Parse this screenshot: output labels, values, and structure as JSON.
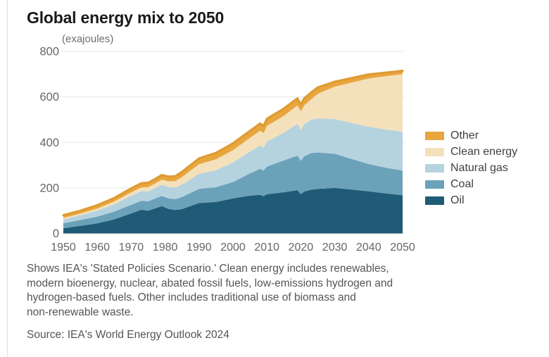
{
  "page": {
    "title": "Global energy mix to 2050",
    "units_label": "(exajoules)",
    "caption_lines": [
      "Shows IEA's 'Stated Policies Scenario.' Clean energy includes renewables,",
      "modern bioenergy, nuclear, abated fossil fuels, low-emissions hydrogen and",
      "hydrogen-based fuels. Other includes traditional use of biomass and",
      "non-renewable waste."
    ],
    "source": "Source: IEA's World Energy Outlook 2024"
  },
  "chart_data": {
    "type": "area",
    "stacked": true,
    "title": "Global energy mix to 2050",
    "ylabel": "(exajoules)",
    "xlabel": "",
    "grid": "horizontal",
    "legend_position": "right",
    "xlim": [
      1950,
      2050
    ],
    "ylim": [
      0,
      800
    ],
    "xticks": [
      1950,
      1960,
      1970,
      1980,
      1990,
      2000,
      2010,
      2020,
      2030,
      2040,
      2050
    ],
    "yticks": [
      0,
      200,
      400,
      600,
      800
    ],
    "x": [
      1950,
      1955,
      1960,
      1965,
      1970,
      1973,
      1975,
      1977,
      1979,
      1981,
      1983,
      1985,
      1990,
      1995,
      2000,
      2005,
      2008,
      2009,
      2010,
      2015,
      2019,
      2020,
      2021,
      2023,
      2025,
      2030,
      2035,
      2040,
      2045,
      2050
    ],
    "series": [
      {
        "name": "Oil",
        "color": "#1F5B76",
        "values": [
          23,
          33,
          44,
          62,
          88,
          104,
          100,
          110,
          120,
          108,
          103,
          107,
          134,
          138,
          154,
          166,
          170,
          164,
          172,
          181,
          190,
          173,
          184,
          192,
          196,
          200,
          193,
          185,
          176,
          168
        ]
      },
      {
        "name": "Coal",
        "color": "#6BA2B9",
        "values": [
          22,
          26,
          30,
          34,
          38,
          39,
          41,
          43,
          45,
          46,
          48,
          53,
          62,
          65,
          72,
          98,
          114,
          112,
          122,
          140,
          152,
          146,
          155,
          161,
          160,
          150,
          134,
          120,
          113,
          108
        ]
      },
      {
        "name": "Natural gas",
        "color": "#B5D3DF",
        "values": [
          17,
          21,
          26,
          32,
          40,
          43,
          44,
          46,
          49,
          50,
          51,
          55,
          66,
          75,
          86,
          96,
          103,
          100,
          110,
          122,
          140,
          137,
          142,
          146,
          150,
          153,
          158,
          164,
          168,
          171
        ]
      },
      {
        "name": "Clean energy",
        "color": "#F4E1BC",
        "values": [
          6,
          7,
          9,
          12,
          14,
          16,
          18,
          20,
          22,
          25,
          28,
          33,
          42,
          48,
          54,
          60,
          64,
          65,
          68,
          74,
          80,
          81,
          82,
          90,
          108,
          142,
          178,
          212,
          234,
          253
        ]
      },
      {
        "name": "Other",
        "color": "#E8A63F",
        "values": [
          12,
          13,
          15,
          16,
          18,
          19,
          20,
          20,
          21,
          21,
          22,
          23,
          26,
          28,
          30,
          31,
          32,
          32,
          32,
          32,
          32,
          30,
          31,
          30,
          28,
          22,
          20,
          18,
          16,
          15
        ]
      }
    ],
    "top_line_color": "#DE9A31",
    "gridline_color": "#e4e4e4",
    "tick_label_color": "#666666"
  }
}
